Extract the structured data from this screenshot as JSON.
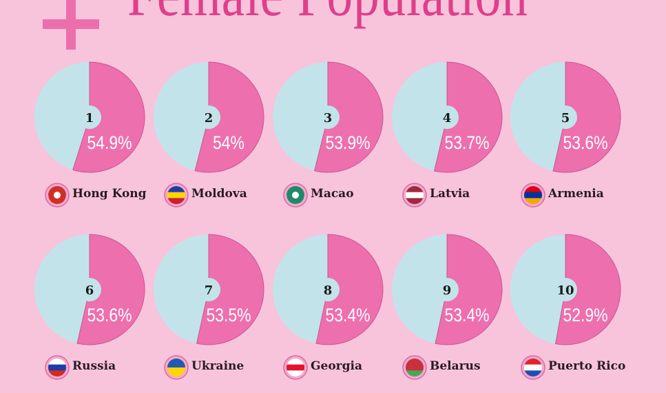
{
  "title": "Female Population",
  "colors": {
    "background": "#f7c4dc",
    "female": "#ee6fae",
    "other": "#c3e3ea",
    "title": "#df3f8a"
  },
  "chart_data": {
    "type": "pie",
    "title": "Female Population",
    "unit": "%",
    "items": [
      {
        "rank": "1",
        "country": "Hong Kong",
        "value": 54.9,
        "label": "54.9%",
        "flag_colors": [
          "#d22e26",
          "#ffffff"
        ]
      },
      {
        "rank": "2",
        "country": "Moldova",
        "value": 54.0,
        "label": "54%",
        "flag_colors": [
          "#1a3fa8",
          "#ffd200",
          "#cc1f2f"
        ]
      },
      {
        "rank": "3",
        "country": "Macao",
        "value": 53.9,
        "label": "53.9%",
        "flag_colors": [
          "#1f8a6b",
          "#ffffff"
        ]
      },
      {
        "rank": "4",
        "country": "Latvia",
        "value": 53.7,
        "label": "53.7%",
        "flag_colors": [
          "#9e2a3a",
          "#ffffff",
          "#9e2a3a"
        ]
      },
      {
        "rank": "5",
        "country": "Armenia",
        "value": 53.6,
        "label": "53.6%",
        "flag_colors": [
          "#d90012",
          "#0033a0",
          "#f2a800"
        ]
      },
      {
        "rank": "6",
        "country": "Russia",
        "value": 53.6,
        "label": "53.6%",
        "flag_colors": [
          "#ffffff",
          "#1c3ea8",
          "#d52b1e"
        ]
      },
      {
        "rank": "7",
        "country": "Ukraine",
        "value": 53.5,
        "label": "53.5%",
        "flag_colors": [
          "#1f5bb5",
          "#ffd500"
        ]
      },
      {
        "rank": "8",
        "country": "Georgia",
        "value": 53.4,
        "label": "53.4%",
        "flag_colors": [
          "#ffffff",
          "#e8112d",
          "#ffffff"
        ]
      },
      {
        "rank": "9",
        "country": "Belarus",
        "value": 53.4,
        "label": "53.4%",
        "flag_colors": [
          "#c8313e",
          "#c8313e",
          "#4aa657"
        ]
      },
      {
        "rank": "10",
        "country": "Puerto Rico",
        "value": 52.9,
        "label": "52.9%",
        "flag_colors": [
          "#e3222c",
          "#ffffff",
          "#1f4fb5"
        ]
      }
    ]
  }
}
